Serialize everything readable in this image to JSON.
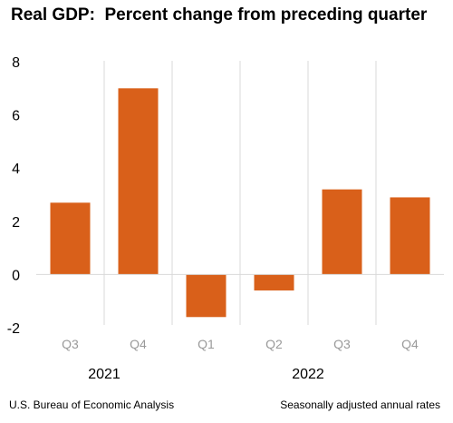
{
  "chart_data": {
    "type": "bar",
    "title": "Real GDP:  Percent change from preceding quarter",
    "categories": [
      "Q3",
      "Q4",
      "Q1",
      "Q2",
      "Q3",
      "Q4"
    ],
    "years": [
      {
        "label": "2021",
        "categories": [
          "Q3",
          "Q4"
        ]
      },
      {
        "label": "2022",
        "categories": [
          "Q1",
          "Q2",
          "Q3",
          "Q4"
        ]
      }
    ],
    "values": [
      2.7,
      7.0,
      -1.6,
      -0.6,
      3.2,
      2.9
    ],
    "ylim": [
      -2,
      8
    ],
    "yticks": [
      -2,
      0,
      2,
      4,
      6,
      8
    ],
    "xlabel": "",
    "ylabel": "",
    "grid": false,
    "bar_color": "#d9601a",
    "separator_color": "#d9d9d9"
  },
  "footer": {
    "source": "U.S. Bureau of Economic Analysis",
    "note": "Seasonally adjusted annual rates"
  }
}
